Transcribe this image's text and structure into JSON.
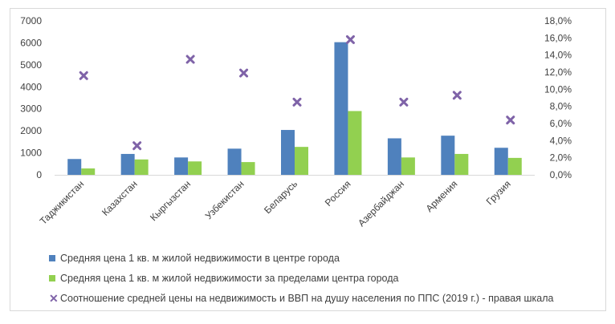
{
  "chart_data": {
    "type": "bar",
    "categories": [
      "Таджикистан",
      "Казахстан",
      "Кыргызстан",
      "Узбекистан",
      "Беларусь",
      "Россия",
      "Азербайджан",
      "Армения",
      "Грузия"
    ],
    "series": [
      {
        "name": "Средняя цена 1 кв. м жилой недвижимости в центре города",
        "type": "bar",
        "axis": "left",
        "color": "#4f81bd",
        "values": [
          720,
          950,
          790,
          1190,
          2040,
          6030,
          1660,
          1780,
          1230
        ]
      },
      {
        "name": "Средняя цена 1 кв. м жилой недвижимости за пределами центра города",
        "type": "bar",
        "axis": "left",
        "color": "#92d050",
        "values": [
          290,
          700,
          610,
          580,
          1270,
          2900,
          790,
          950,
          770
        ]
      },
      {
        "name": "Соотношение средней цены на недвижимость и ВВП на душу населения по ППС (2019 г.) - правая шкала",
        "type": "scatter",
        "marker": "x",
        "axis": "right",
        "color": "#7f63a8",
        "values": [
          11.6,
          3.4,
          13.5,
          11.9,
          8.5,
          15.8,
          8.5,
          9.3,
          6.4
        ]
      }
    ],
    "y_left": {
      "min": 0,
      "max": 7000,
      "ticks": [
        "0",
        "1000",
        "2000",
        "3000",
        "4000",
        "5000",
        "6000",
        "7000"
      ]
    },
    "y_right": {
      "min": 0,
      "max": 18,
      "ticks": [
        "0,0%",
        "2,0%",
        "4,0%",
        "6,0%",
        "8,0%",
        "10,0%",
        "12,0%",
        "14,0%",
        "16,0%",
        "18,0%"
      ]
    },
    "grid": false,
    "legend_position": "bottom-left"
  }
}
